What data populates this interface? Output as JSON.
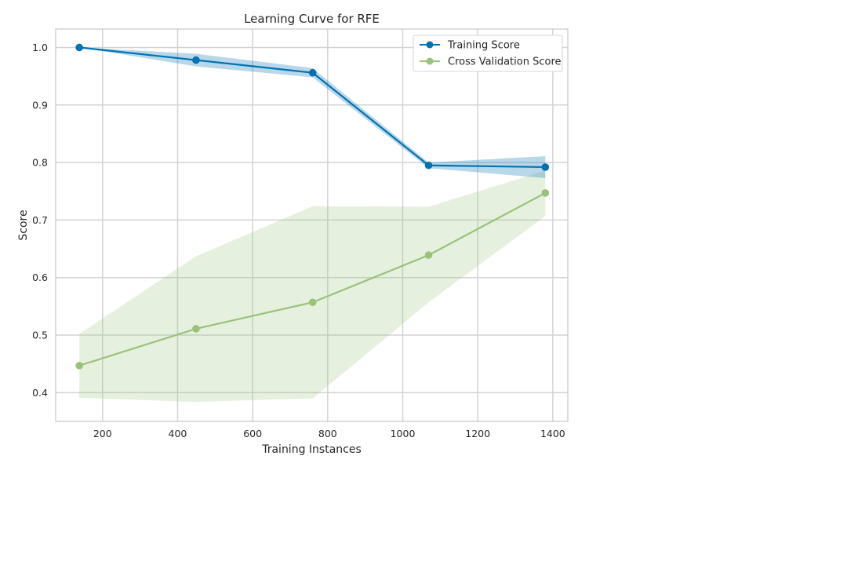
{
  "chart_data": {
    "type": "line",
    "title": "Learning Curve for RFE",
    "xlabel": "Training Instances",
    "ylabel": "Score",
    "xlim": [
      75,
      1440
    ],
    "ylim": [
      0.35,
      1.032
    ],
    "xticks": [
      200,
      400,
      600,
      800,
      1000,
      1200,
      1400
    ],
    "yticks": [
      0.4,
      0.5,
      0.6,
      0.7,
      0.8,
      0.9,
      1.0
    ],
    "xtick_labels": [
      "200",
      "400",
      "600",
      "800",
      "1000",
      "1200",
      "1400"
    ],
    "ytick_labels": [
      "0.4",
      "0.5",
      "0.6",
      "0.7",
      "0.8",
      "0.9",
      "1.0"
    ],
    "grid": true,
    "legend_position": "top-right",
    "x": [
      138,
      449,
      760,
      1069,
      1380
    ],
    "series": [
      {
        "name": "Training Score",
        "color": "#0072b2",
        "values": [
          1.0,
          0.978,
          0.956,
          0.795,
          0.792
        ],
        "band_upper": [
          1.0,
          0.989,
          0.964,
          0.8,
          0.811
        ],
        "band_lower": [
          1.0,
          0.967,
          0.948,
          0.79,
          0.773
        ]
      },
      {
        "name": "Cross Validation Score",
        "color": "#9ac27a",
        "values": [
          0.447,
          0.511,
          0.557,
          0.639,
          0.747
        ],
        "band_upper": [
          0.502,
          0.637,
          0.724,
          0.723,
          0.786
        ],
        "band_lower": [
          0.391,
          0.384,
          0.39,
          0.557,
          0.707
        ]
      }
    ]
  }
}
